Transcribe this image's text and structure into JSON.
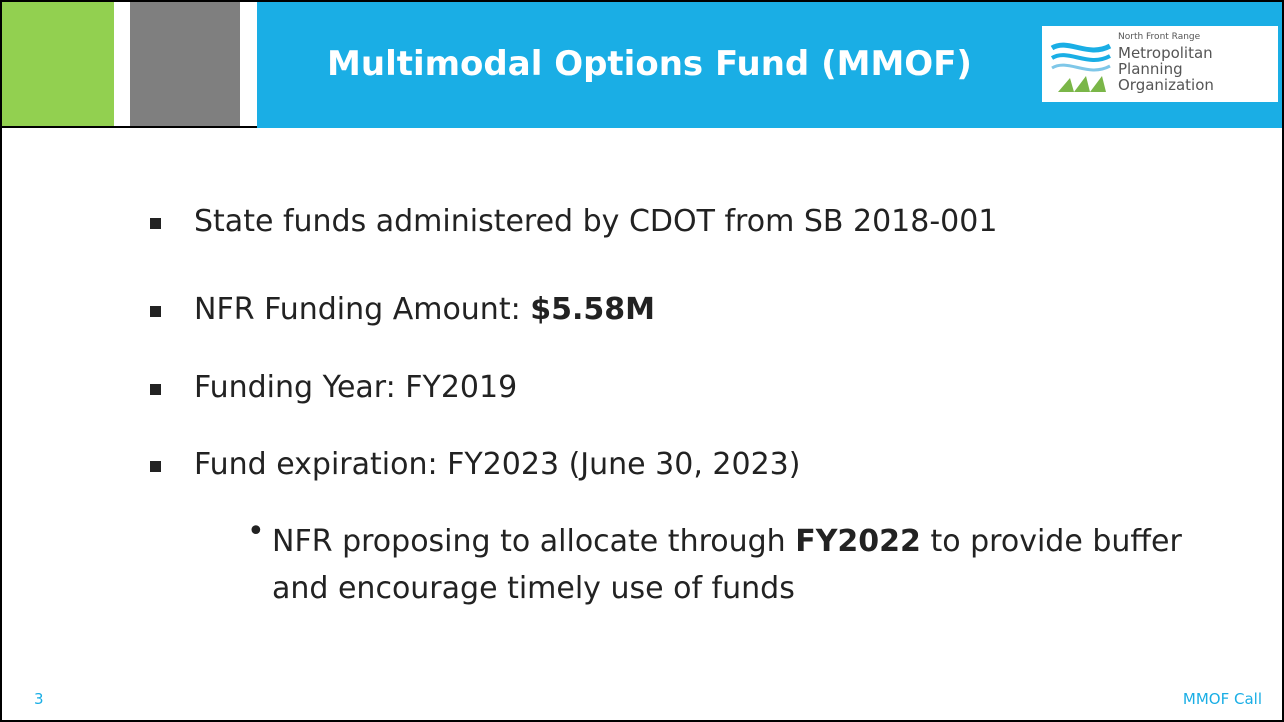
{
  "header": {
    "title": "Multimodal Options Fund (MMOF)",
    "logo": [
      "North Front Range",
      "Metropolitan",
      "Planning",
      "Organization"
    ]
  },
  "bullets": [
    {
      "text": "State funds administered by CDOT from SB 2018-001"
    },
    {
      "text": "NFR Funding Amount: ",
      "bold": "$5.58M"
    },
    {
      "text": "Funding Year: FY2019"
    },
    {
      "text": "Fund expiration: FY2023 (June 30, 2023)"
    }
  ],
  "sub_bullet": {
    "text": "NFR proposing to allocate through ",
    "bold": "FY2022",
    "after": " to provide buffer and encourage timely use of funds"
  },
  "footer": {
    "page": "3",
    "label": "MMOF Call"
  }
}
